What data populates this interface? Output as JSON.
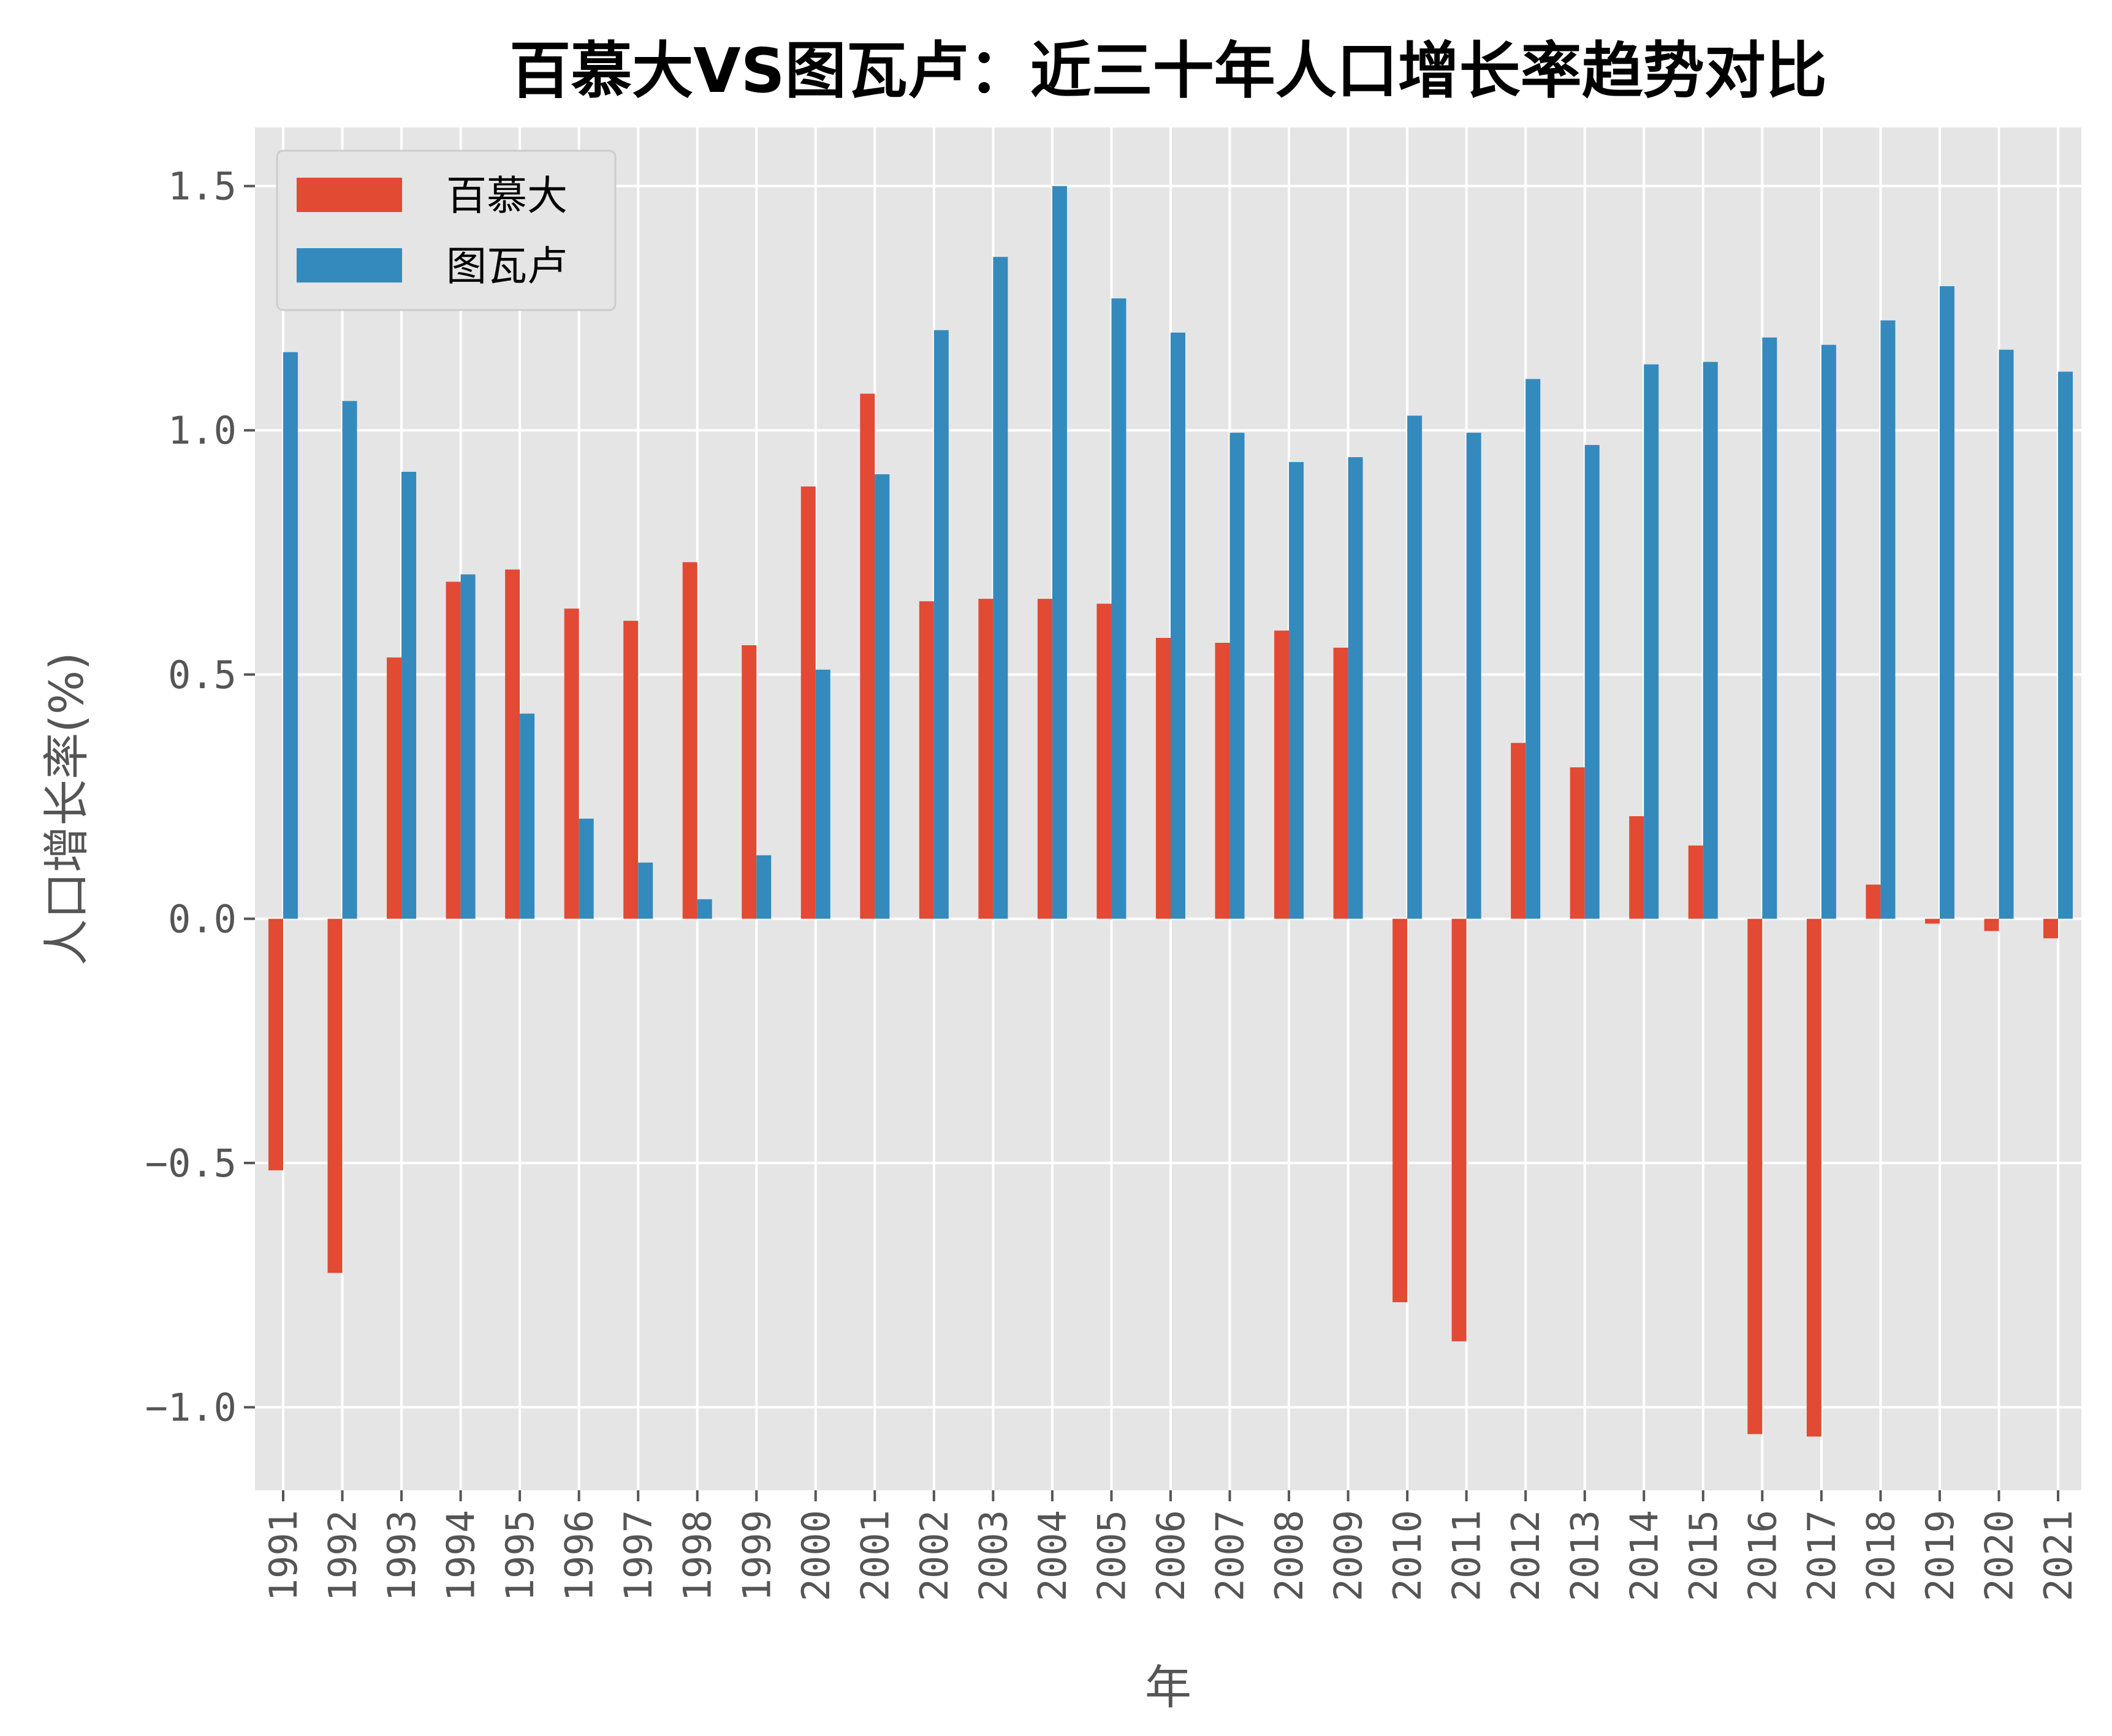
{
  "chart_data": {
    "type": "bar",
    "title": "百慕大VS图瓦卢：近三十年人口增长率趋势对比",
    "xlabel": "年",
    "ylabel": "人口增长率(%)",
    "ylim": [
      -1.17,
      1.62
    ],
    "yticks": [
      -1.0,
      -0.5,
      0.0,
      0.5,
      1.0,
      1.5
    ],
    "ytick_labels": [
      "−1.0",
      "−0.5",
      "0.0",
      "0.5",
      "1.0",
      "1.5"
    ],
    "grid": true,
    "legend_position": "top-left",
    "categories": [
      "1991",
      "1992",
      "1993",
      "1994",
      "1995",
      "1996",
      "1997",
      "1998",
      "1999",
      "2000",
      "2001",
      "2002",
      "2003",
      "2004",
      "2005",
      "2006",
      "2007",
      "2008",
      "2009",
      "2010",
      "2011",
      "2012",
      "2013",
      "2014",
      "2015",
      "2016",
      "2017",
      "2018",
      "2019",
      "2020",
      "2021"
    ],
    "series": [
      {
        "name": "百慕大",
        "color": "#E24A33",
        "values": [
          -0.515,
          -0.725,
          0.535,
          0.69,
          0.715,
          0.635,
          0.61,
          0.73,
          0.56,
          0.885,
          1.075,
          0.65,
          0.655,
          0.655,
          0.645,
          0.575,
          0.565,
          0.59,
          0.555,
          -0.785,
          -0.865,
          0.36,
          0.31,
          0.21,
          0.15,
          -1.055,
          -1.06,
          0.07,
          -0.01,
          -0.025,
          -0.04
        ]
      },
      {
        "name": "图瓦卢",
        "color": "#348ABD",
        "values": [
          1.16,
          1.06,
          0.915,
          0.705,
          0.42,
          0.205,
          0.115,
          0.04,
          0.13,
          0.51,
          0.91,
          1.205,
          1.355,
          1.5,
          1.27,
          1.2,
          0.995,
          0.935,
          0.945,
          1.03,
          0.995,
          1.105,
          0.97,
          1.135,
          1.14,
          1.19,
          1.175,
          1.225,
          1.295,
          1.165,
          1.12
        ]
      }
    ]
  }
}
